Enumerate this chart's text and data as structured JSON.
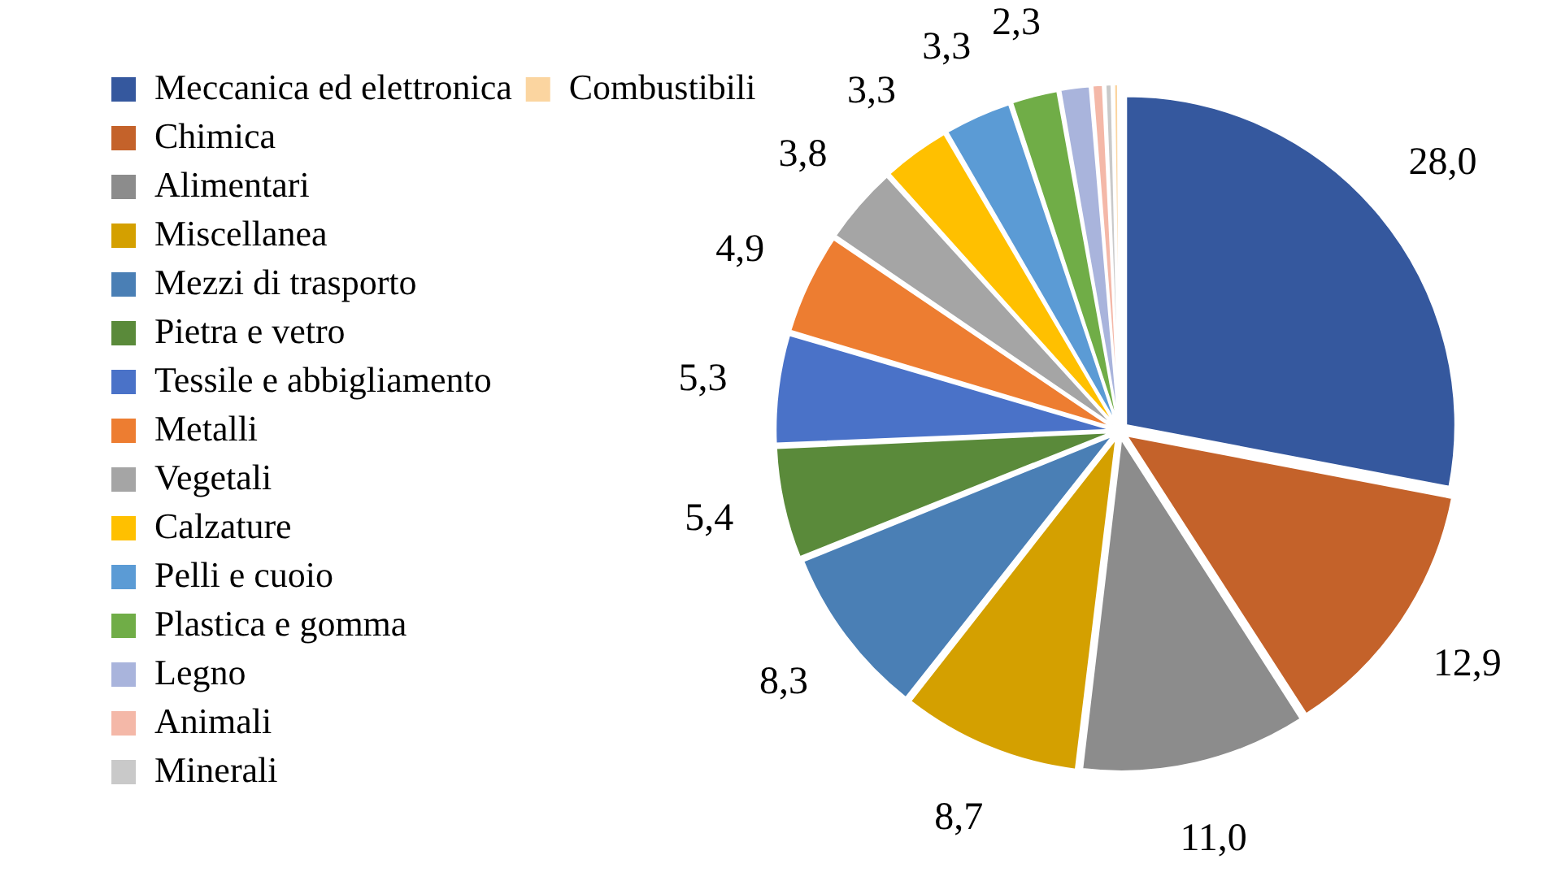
{
  "chart_data": {
    "type": "pie",
    "categories": [
      "Meccanica ed elettronica",
      "Chimica",
      "Alimentari",
      "Miscellanea",
      "Mezzi di trasporto",
      "Pietra e vetro",
      "Tessile e abbigliamento",
      "Metalli",
      "Vegetali",
      "Calzature",
      "Pelli e cuoio",
      "Plastica e gomma",
      "Legno",
      "Animali",
      "Minerali",
      "Combustibili"
    ],
    "values": [
      28.0,
      12.9,
      11.0,
      8.7,
      8.3,
      5.4,
      5.3,
      4.9,
      3.8,
      3.3,
      3.3,
      2.3,
      1.5,
      0.6,
      0.4,
      0.3
    ],
    "value_labels": [
      "28,0",
      "12,9",
      "11,0",
      "8,7",
      "8,3",
      "5,4",
      "5,3",
      "4,9",
      "3,8",
      "3,3",
      "3,3",
      "2,3",
      null,
      null,
      null,
      null
    ],
    "colors": [
      "#35589e",
      "#c4622a",
      "#8c8c8c",
      "#d4a000",
      "#4a7fb5",
      "#5a8a3a",
      "#4a72c8",
      "#ed7d31",
      "#a5a5a5",
      "#ffc000",
      "#5b9bd5",
      "#70ad47",
      "#a9b4dc",
      "#f4b8a8",
      "#c9c9c9",
      "#fbd5a0"
    ],
    "legend": "left"
  }
}
